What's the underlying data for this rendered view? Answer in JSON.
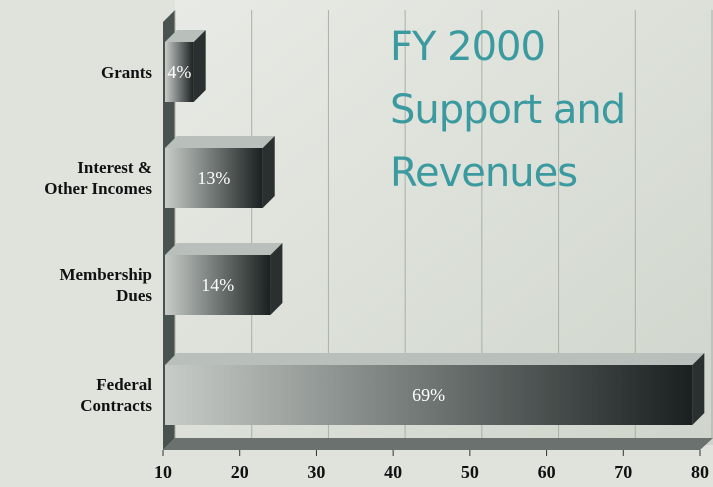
{
  "chart_data": {
    "type": "bar",
    "orientation": "horizontal",
    "title": [
      "FY 2000",
      "Support and",
      "Revenues"
    ],
    "categories": [
      "Grants",
      "Interest & Other Incomes",
      "Membership Dues",
      "Federal Contracts"
    ],
    "values": [
      4,
      13,
      14,
      69
    ],
    "value_labels": [
      "4%",
      "13%",
      "14%",
      "69%"
    ],
    "color": "#6f7674",
    "xlim": [
      0,
      70
    ],
    "xticks": [
      {
        "value": 0,
        "label": "10"
      },
      {
        "value": 10,
        "label": "20"
      },
      {
        "value": 20,
        "label": "30"
      },
      {
        "value": 30,
        "label": "40"
      },
      {
        "value": 40,
        "label": "50"
      },
      {
        "value": 50,
        "label": "60"
      },
      {
        "value": 60,
        "label": "70"
      },
      {
        "value": 70,
        "label": "80"
      }
    ],
    "grid": true
  }
}
